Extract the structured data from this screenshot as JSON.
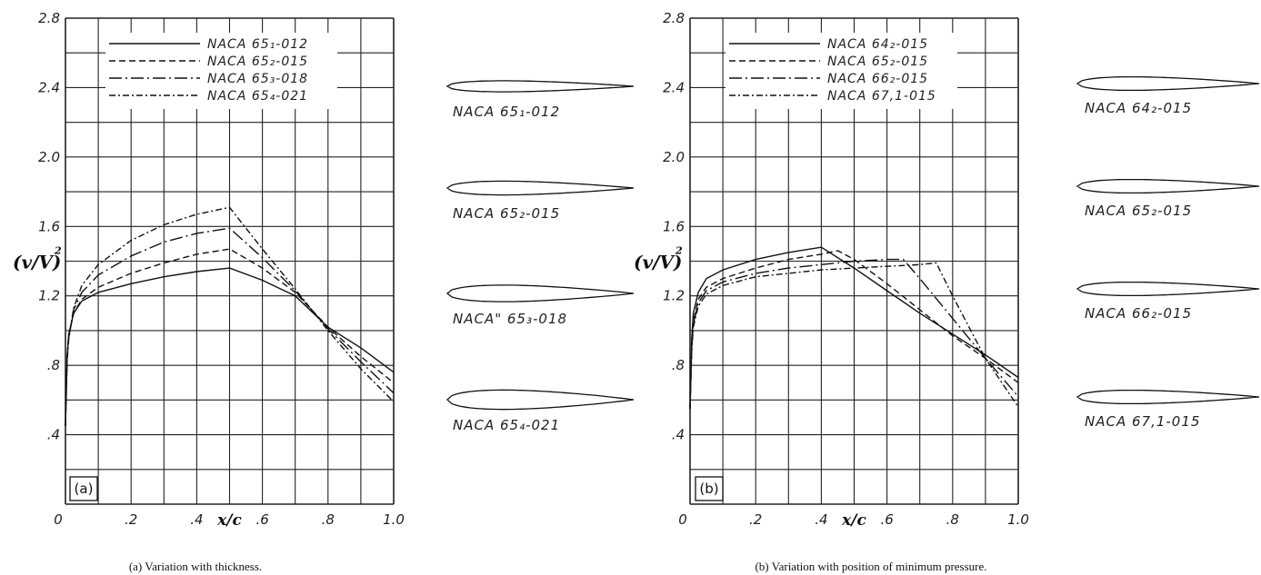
{
  "chart_data": [
    {
      "type": "line",
      "panel_label": "(a)",
      "caption": "(a) Variation with thickness.",
      "xlabel": "x/c",
      "ylabel": "(v/V)",
      "ylabel_exponent": "2",
      "xlim": [
        0,
        1.0
      ],
      "ylim": [
        0,
        2.8
      ],
      "x_ticks": [
        "0",
        ".2",
        ".4",
        ".6",
        ".8",
        "1.0"
      ],
      "y_ticks": [
        ".4",
        ".8",
        "1.2",
        "1.6",
        "2.0",
        "2.4",
        "2.8"
      ],
      "grid": true,
      "legend_position": "top-left",
      "series": [
        {
          "name": "NACA 65₁-012",
          "dash": "solid",
          "x": [
            0,
            0.005,
            0.01,
            0.025,
            0.05,
            0.1,
            0.2,
            0.3,
            0.4,
            0.5,
            0.6,
            0.7,
            0.8,
            0.9,
            1.0
          ],
          "y": [
            0.45,
            0.85,
            0.98,
            1.1,
            1.17,
            1.22,
            1.27,
            1.31,
            1.34,
            1.36,
            1.29,
            1.2,
            1.02,
            0.9,
            0.76
          ]
        },
        {
          "name": "NACA 65₂-015",
          "dash": "dashed",
          "x": [
            0,
            0.005,
            0.01,
            0.025,
            0.05,
            0.1,
            0.2,
            0.3,
            0.4,
            0.5,
            0.6,
            0.7,
            0.8,
            0.9,
            1.0
          ],
          "y": [
            0.45,
            0.85,
            0.97,
            1.1,
            1.18,
            1.25,
            1.33,
            1.39,
            1.44,
            1.47,
            1.36,
            1.22,
            1.02,
            0.85,
            0.7
          ]
        },
        {
          "name": "NACA 65₃-018",
          "dash": "long-dash-dot",
          "x": [
            0,
            0.005,
            0.01,
            0.025,
            0.05,
            0.1,
            0.2,
            0.3,
            0.4,
            0.5,
            0.6,
            0.7,
            0.8,
            0.9,
            1.0
          ],
          "y": [
            0.45,
            0.84,
            0.96,
            1.12,
            1.22,
            1.32,
            1.43,
            1.51,
            1.56,
            1.59,
            1.42,
            1.23,
            1.01,
            0.82,
            0.64
          ]
        },
        {
          "name": "NACA 65₄-021",
          "dash": "dash-dot",
          "x": [
            0,
            0.005,
            0.01,
            0.025,
            0.05,
            0.1,
            0.2,
            0.3,
            0.4,
            0.5,
            0.6,
            0.7,
            0.8,
            0.9,
            1.0
          ],
          "y": [
            0.45,
            0.82,
            0.95,
            1.13,
            1.26,
            1.38,
            1.52,
            1.61,
            1.67,
            1.71,
            1.47,
            1.24,
            1.0,
            0.78,
            0.59
          ]
        }
      ],
      "airfoil_labels": [
        "NACA 65₁-012",
        "NACA 65₂-015",
        "NACA\" 65₃-018",
        "NACA 65₄-021"
      ],
      "airfoil_thickness": [
        0.12,
        0.15,
        0.18,
        0.21
      ]
    },
    {
      "type": "line",
      "panel_label": "(b)",
      "caption": "(b) Variation with position of minimum pressure.",
      "xlabel": "x/c",
      "ylabel": "(v/V)",
      "ylabel_exponent": "2",
      "xlim": [
        0,
        1.0
      ],
      "ylim": [
        0,
        2.8
      ],
      "x_ticks": [
        "0",
        ".2",
        ".4",
        ".6",
        ".8",
        "1.0"
      ],
      "y_ticks": [
        ".4",
        ".8",
        "1.2",
        "1.6",
        "2.0",
        "2.4",
        "2.8"
      ],
      "grid": true,
      "legend_position": "top-left",
      "series": [
        {
          "name": "NACA 64₂-015",
          "dash": "solid",
          "x": [
            0,
            0.005,
            0.01,
            0.025,
            0.05,
            0.1,
            0.2,
            0.3,
            0.4,
            0.5,
            0.6,
            0.7,
            0.8,
            0.9,
            1.0
          ],
          "y": [
            0.55,
            0.95,
            1.1,
            1.22,
            1.3,
            1.35,
            1.41,
            1.45,
            1.48,
            1.36,
            1.23,
            1.1,
            0.98,
            0.86,
            0.73
          ]
        },
        {
          "name": "NACA 65₂-015",
          "dash": "dashed",
          "x": [
            0,
            0.005,
            0.01,
            0.025,
            0.05,
            0.1,
            0.2,
            0.3,
            0.4,
            0.45,
            0.5,
            0.6,
            0.7,
            0.8,
            0.9,
            1.0
          ],
          "y": [
            0.55,
            0.9,
            1.05,
            1.18,
            1.25,
            1.3,
            1.36,
            1.41,
            1.44,
            1.46,
            1.41,
            1.27,
            1.12,
            0.97,
            0.84,
            0.7
          ]
        },
        {
          "name": "NACA 66₂-015",
          "dash": "long-dash-dot",
          "x": [
            0,
            0.005,
            0.01,
            0.025,
            0.05,
            0.1,
            0.2,
            0.3,
            0.4,
            0.5,
            0.6,
            0.65,
            0.7,
            0.8,
            0.9,
            1.0
          ],
          "y": [
            0.55,
            0.9,
            1.04,
            1.16,
            1.23,
            1.28,
            1.33,
            1.36,
            1.38,
            1.4,
            1.41,
            1.41,
            1.3,
            1.07,
            0.84,
            0.62
          ]
        },
        {
          "name": "NACA 67,1-015",
          "dash": "dash-dot",
          "x": [
            0,
            0.005,
            0.01,
            0.025,
            0.05,
            0.1,
            0.2,
            0.3,
            0.4,
            0.5,
            0.6,
            0.7,
            0.75,
            0.8,
            0.9,
            1.0
          ],
          "y": [
            0.55,
            0.88,
            1.02,
            1.14,
            1.21,
            1.26,
            1.31,
            1.33,
            1.35,
            1.36,
            1.37,
            1.38,
            1.39,
            1.2,
            0.84,
            0.56
          ]
        }
      ],
      "airfoil_labels": [
        "NACA 64₂-015",
        "NACA 65₂-015",
        "NACA 66₂-015",
        "NACA 67,1-015"
      ],
      "airfoil_thickness": [
        0.15,
        0.15,
        0.15,
        0.15
      ]
    }
  ]
}
